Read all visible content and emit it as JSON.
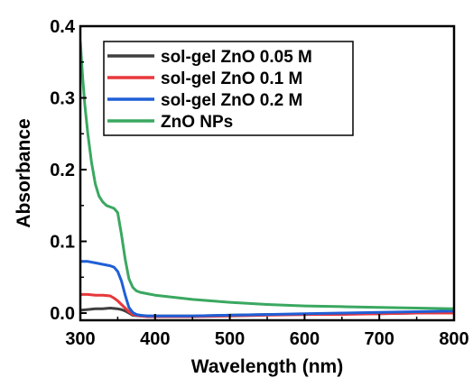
{
  "chart_data": {
    "type": "line",
    "title": "",
    "xlabel": "Wavelength (nm)",
    "ylabel": "Absorbance",
    "xlim": [
      300,
      800
    ],
    "ylim": [
      -0.01,
      0.4
    ],
    "xticks": [
      300,
      400,
      500,
      600,
      700,
      800
    ],
    "xtick_labels": [
      "300",
      "400",
      "500",
      "600",
      "700",
      "800"
    ],
    "yticks": [
      0.0,
      0.1,
      0.2,
      0.3,
      0.4
    ],
    "ytick_labels": [
      "0.0",
      "0.1",
      "0.2",
      "0.3",
      "0.4"
    ],
    "grid": false,
    "legend_position": "top-left",
    "series": [
      {
        "name": "sol-gel ZnO 0.05 M",
        "color": "#3f3f3f",
        "x": [
          300,
          310,
          320,
          330,
          340,
          350,
          355,
          360,
          365,
          370,
          380,
          390,
          400,
          450,
          500,
          550,
          600,
          650,
          700,
          750,
          800
        ],
        "y": [
          0.004,
          0.005,
          0.006,
          0.006,
          0.007,
          0.006,
          0.005,
          0.003,
          0.0,
          -0.003,
          -0.004,
          -0.004,
          -0.004,
          -0.004,
          -0.003,
          -0.002,
          -0.002,
          -0.001,
          -0.001,
          0.0,
          0.0
        ]
      },
      {
        "name": "sol-gel ZnO 0.1 M",
        "color": "#e8373b",
        "x": [
          300,
          310,
          320,
          330,
          340,
          345,
          350,
          355,
          360,
          365,
          370,
          380,
          390,
          400,
          450,
          500,
          550,
          600,
          650,
          700,
          750,
          800
        ],
        "y": [
          0.026,
          0.026,
          0.025,
          0.025,
          0.024,
          0.021,
          0.017,
          0.012,
          0.007,
          0.002,
          -0.002,
          -0.004,
          -0.005,
          -0.005,
          -0.005,
          -0.004,
          -0.003,
          -0.002,
          -0.002,
          -0.001,
          0.0,
          0.0
        ]
      },
      {
        "name": "sol-gel ZnO 0.2 M",
        "color": "#1f5fd6",
        "x": [
          300,
          310,
          320,
          330,
          340,
          345,
          350,
          355,
          360,
          365,
          370,
          375,
          380,
          390,
          400,
          450,
          500,
          550,
          600,
          650,
          700,
          750,
          800
        ],
        "y": [
          0.072,
          0.072,
          0.07,
          0.068,
          0.066,
          0.064,
          0.058,
          0.045,
          0.025,
          0.008,
          0.001,
          -0.002,
          -0.003,
          -0.004,
          -0.004,
          -0.004,
          -0.003,
          -0.002,
          -0.001,
          0.0,
          0.001,
          0.002,
          0.003
        ]
      },
      {
        "name": "ZnO NPs",
        "color": "#3aa860",
        "x": [
          300,
          303,
          306,
          310,
          315,
          320,
          325,
          330,
          335,
          340,
          345,
          350,
          355,
          360,
          365,
          370,
          375,
          380,
          390,
          400,
          450,
          500,
          550,
          600,
          650,
          700,
          750,
          800
        ],
        "y": [
          0.378,
          0.33,
          0.29,
          0.25,
          0.21,
          0.18,
          0.163,
          0.155,
          0.15,
          0.148,
          0.146,
          0.14,
          0.11,
          0.075,
          0.048,
          0.036,
          0.031,
          0.029,
          0.027,
          0.025,
          0.019,
          0.015,
          0.012,
          0.01,
          0.009,
          0.008,
          0.007,
          0.006
        ]
      }
    ]
  }
}
